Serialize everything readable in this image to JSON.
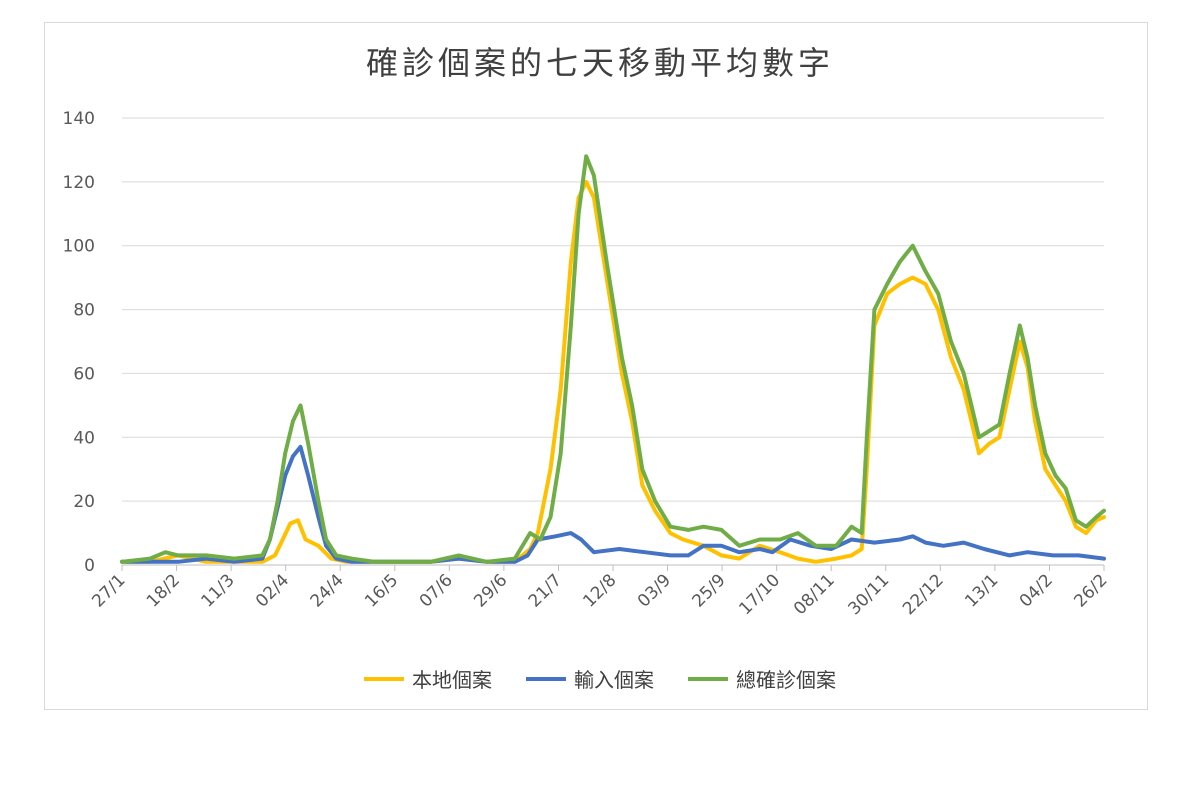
{
  "colors": {
    "local": "#FFC000",
    "imported": "#4472C4",
    "total": "#70AD47",
    "grid": "#d9d9d9",
    "axis": "#bfbfbf"
  },
  "chart_data": {
    "type": "line",
    "title": "確診個案的七天移動平均數字",
    "xlabel": "",
    "ylabel": "",
    "ylim": [
      0,
      140
    ],
    "yticks": [
      0,
      20,
      40,
      60,
      80,
      100,
      120,
      140
    ],
    "xticks": [
      "27/1",
      "18/2",
      "11/3",
      "02/4",
      "24/4",
      "16/5",
      "07/6",
      "29/6",
      "21/7",
      "12/8",
      "03/9",
      "25/9",
      "17/10",
      "08/11",
      "30/11",
      "22/12",
      "13/1",
      "04/2",
      "26/2"
    ],
    "grid": true,
    "legend_position": "bottom",
    "series": [
      {
        "name": "本地個案",
        "key": "local",
        "points": [
          [
            0,
            1
          ],
          [
            11,
            1
          ],
          [
            22,
            3
          ],
          [
            33,
            1
          ],
          [
            44,
            1
          ],
          [
            55,
            1
          ],
          [
            60,
            3
          ],
          [
            63,
            8
          ],
          [
            66,
            13
          ],
          [
            69,
            14
          ],
          [
            72,
            8
          ],
          [
            77,
            6
          ],
          [
            82,
            2
          ],
          [
            88,
            1
          ],
          [
            99,
            1
          ],
          [
            110,
            1
          ],
          [
            121,
            1
          ],
          [
            132,
            2
          ],
          [
            143,
            1
          ],
          [
            154,
            1
          ],
          [
            160,
            5
          ],
          [
            163,
            10
          ],
          [
            168,
            30
          ],
          [
            172,
            55
          ],
          [
            176,
            95
          ],
          [
            179,
            115
          ],
          [
            182,
            120
          ],
          [
            185,
            115
          ],
          [
            190,
            90
          ],
          [
            196,
            60
          ],
          [
            200,
            45
          ],
          [
            204,
            25
          ],
          [
            209,
            17
          ],
          [
            215,
            10
          ],
          [
            220,
            8
          ],
          [
            228,
            6
          ],
          [
            235,
            3
          ],
          [
            242,
            2
          ],
          [
            250,
            6
          ],
          [
            258,
            4
          ],
          [
            265,
            2
          ],
          [
            272,
            1
          ],
          [
            280,
            2
          ],
          [
            286,
            3
          ],
          [
            290,
            5
          ],
          [
            292,
            30
          ],
          [
            295,
            75
          ],
          [
            300,
            85
          ],
          [
            305,
            88
          ],
          [
            310,
            90
          ],
          [
            315,
            88
          ],
          [
            320,
            80
          ],
          [
            325,
            65
          ],
          [
            330,
            55
          ],
          [
            333,
            45
          ],
          [
            336,
            35
          ],
          [
            340,
            38
          ],
          [
            344,
            40
          ],
          [
            348,
            55
          ],
          [
            352,
            70
          ],
          [
            355,
            62
          ],
          [
            358,
            45
          ],
          [
            362,
            30
          ],
          [
            366,
            25
          ],
          [
            370,
            20
          ],
          [
            374,
            12
          ],
          [
            378,
            10
          ],
          [
            382,
            14
          ],
          [
            385,
            15
          ]
        ]
      },
      {
        "name": "輸入個案",
        "key": "imported",
        "points": [
          [
            0,
            1
          ],
          [
            11,
            1
          ],
          [
            22,
            1
          ],
          [
            33,
            2
          ],
          [
            44,
            1
          ],
          [
            55,
            2
          ],
          [
            58,
            8
          ],
          [
            61,
            18
          ],
          [
            64,
            28
          ],
          [
            67,
            34
          ],
          [
            70,
            37
          ],
          [
            73,
            28
          ],
          [
            77,
            15
          ],
          [
            80,
            6
          ],
          [
            84,
            2
          ],
          [
            90,
            1
          ],
          [
            99,
            1
          ],
          [
            110,
            1
          ],
          [
            121,
            1
          ],
          [
            132,
            2
          ],
          [
            143,
            1
          ],
          [
            154,
            1
          ],
          [
            159,
            3
          ],
          [
            163,
            8
          ],
          [
            170,
            9
          ],
          [
            176,
            10
          ],
          [
            180,
            8
          ],
          [
            185,
            4
          ],
          [
            195,
            5
          ],
          [
            205,
            4
          ],
          [
            215,
            3
          ],
          [
            222,
            3
          ],
          [
            228,
            6
          ],
          [
            235,
            6
          ],
          [
            242,
            4
          ],
          [
            250,
            5
          ],
          [
            255,
            4
          ],
          [
            262,
            8
          ],
          [
            270,
            6
          ],
          [
            278,
            5
          ],
          [
            286,
            8
          ],
          [
            295,
            7
          ],
          [
            305,
            8
          ],
          [
            310,
            9
          ],
          [
            315,
            7
          ],
          [
            322,
            6
          ],
          [
            330,
            7
          ],
          [
            338,
            5
          ],
          [
            348,
            3
          ],
          [
            355,
            4
          ],
          [
            365,
            3
          ],
          [
            375,
            3
          ],
          [
            385,
            2
          ]
        ]
      },
      {
        "name": "總確診個案",
        "key": "total",
        "points": [
          [
            0,
            1
          ],
          [
            11,
            2
          ],
          [
            17,
            4
          ],
          [
            22,
            3
          ],
          [
            33,
            3
          ],
          [
            44,
            2
          ],
          [
            55,
            3
          ],
          [
            58,
            8
          ],
          [
            61,
            20
          ],
          [
            64,
            35
          ],
          [
            67,
            45
          ],
          [
            70,
            50
          ],
          [
            73,
            38
          ],
          [
            77,
            20
          ],
          [
            80,
            8
          ],
          [
            84,
            3
          ],
          [
            90,
            2
          ],
          [
            99,
            1
          ],
          [
            110,
            1
          ],
          [
            121,
            1
          ],
          [
            132,
            3
          ],
          [
            143,
            1
          ],
          [
            154,
            2
          ],
          [
            160,
            10
          ],
          [
            164,
            8
          ],
          [
            168,
            15
          ],
          [
            172,
            35
          ],
          [
            176,
            75
          ],
          [
            179,
            110
          ],
          [
            182,
            128
          ],
          [
            185,
            122
          ],
          [
            190,
            95
          ],
          [
            196,
            65
          ],
          [
            200,
            50
          ],
          [
            204,
            30
          ],
          [
            209,
            20
          ],
          [
            215,
            12
          ],
          [
            222,
            11
          ],
          [
            228,
            12
          ],
          [
            235,
            11
          ],
          [
            242,
            6
          ],
          [
            250,
            8
          ],
          [
            258,
            8
          ],
          [
            265,
            10
          ],
          [
            272,
            6
          ],
          [
            280,
            6
          ],
          [
            286,
            12
          ],
          [
            290,
            10
          ],
          [
            292,
            40
          ],
          [
            295,
            80
          ],
          [
            300,
            88
          ],
          [
            305,
            95
          ],
          [
            310,
            100
          ],
          [
            315,
            92
          ],
          [
            320,
            85
          ],
          [
            325,
            70
          ],
          [
            330,
            60
          ],
          [
            333,
            50
          ],
          [
            336,
            40
          ],
          [
            340,
            42
          ],
          [
            344,
            44
          ],
          [
            348,
            60
          ],
          [
            352,
            75
          ],
          [
            355,
            65
          ],
          [
            358,
            50
          ],
          [
            362,
            35
          ],
          [
            366,
            28
          ],
          [
            370,
            24
          ],
          [
            374,
            14
          ],
          [
            378,
            12
          ],
          [
            382,
            15
          ],
          [
            385,
            17
          ]
        ]
      }
    ],
    "x_span_days": 385
  }
}
